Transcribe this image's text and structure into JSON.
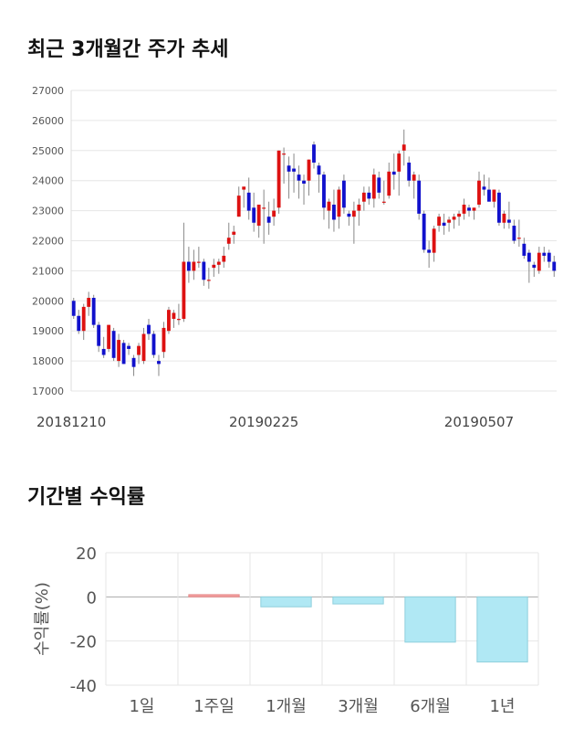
{
  "sections": {
    "price_title": "최근 3개월간 주가 추세",
    "returns_title": "기간별 수익률"
  },
  "chart_data": [
    {
      "type": "candlestick",
      "title": "최근 3개월간 주가 추세",
      "ylim": [
        17000,
        27000
      ],
      "y_ticks": [
        17000,
        18000,
        19000,
        20000,
        21000,
        22000,
        23000,
        24000,
        25000,
        26000,
        27000
      ],
      "x_tick_labels": [
        {
          "index": 0,
          "label": "20181210"
        },
        {
          "index": 38,
          "label": "20190225"
        },
        {
          "index": 81,
          "label": "20190507"
        }
      ],
      "up_color": "#dd1111",
      "down_color": "#1111cc",
      "candles": [
        [
          20000,
          20100,
          19400,
          19500
        ],
        [
          19500,
          19700,
          18900,
          19000
        ],
        [
          19000,
          19900,
          18700,
          19800
        ],
        [
          19800,
          20300,
          19500,
          20100
        ],
        [
          20100,
          20200,
          19100,
          19200
        ],
        [
          19200,
          19300,
          18300,
          18500
        ],
        [
          18400,
          18800,
          18100,
          18200
        ],
        [
          18400,
          19200,
          18300,
          19200
        ],
        [
          19000,
          19100,
          18000,
          18100
        ],
        [
          18000,
          18900,
          17800,
          18700
        ],
        [
          18600,
          18700,
          17900,
          17900
        ],
        [
          18500,
          18600,
          18200,
          18400
        ],
        [
          18100,
          18200,
          17500,
          17800
        ],
        [
          18200,
          18600,
          17900,
          18500
        ],
        [
          18000,
          19100,
          17900,
          18900
        ],
        [
          19200,
          19400,
          18700,
          18900
        ],
        [
          18900,
          19000,
          18100,
          18200
        ],
        [
          18000,
          18200,
          17500,
          17900
        ],
        [
          18300,
          19300,
          18100,
          19100
        ],
        [
          19000,
          19800,
          18900,
          19700
        ],
        [
          19400,
          19700,
          19100,
          19600
        ],
        [
          19400,
          19900,
          19200,
          19400
        ],
        [
          19400,
          22600,
          19300,
          21300
        ],
        [
          21300,
          21800,
          20600,
          21000
        ],
        [
          21000,
          21700,
          20700,
          21300
        ],
        [
          21300,
          21800,
          21100,
          21300
        ],
        [
          21300,
          21400,
          20500,
          20700
        ],
        [
          20700,
          21100,
          20400,
          20700
        ],
        [
          21100,
          21400,
          20800,
          21200
        ],
        [
          21200,
          21400,
          20900,
          21300
        ],
        [
          21300,
          21800,
          21100,
          21500
        ],
        [
          21900,
          22600,
          21700,
          22100
        ],
        [
          22200,
          22500,
          21900,
          22300
        ],
        [
          22800,
          23800,
          22800,
          23500
        ],
        [
          23700,
          23800,
          23100,
          23800
        ],
        [
          23600,
          24100,
          22700,
          23000
        ],
        [
          23100,
          23600,
          22300,
          22600
        ],
        [
          22500,
          23200,
          22100,
          23200
        ],
        [
          23100,
          23700,
          21900,
          23100
        ],
        [
          22800,
          23300,
          22200,
          22600
        ],
        [
          22800,
          23400,
          22500,
          23000
        ],
        [
          23100,
          25000,
          22900,
          25000
        ],
        [
          24900,
          25100,
          23900,
          24900
        ],
        [
          24500,
          24800,
          23400,
          24300
        ],
        [
          24400,
          24900,
          23600,
          24300
        ],
        [
          24200,
          24500,
          23400,
          24000
        ],
        [
          24000,
          24200,
          23200,
          23900
        ],
        [
          24000,
          24700,
          23500,
          24700
        ],
        [
          25200,
          25300,
          24400,
          24600
        ],
        [
          24500,
          24600,
          23600,
          24200
        ],
        [
          24200,
          24300,
          22700,
          23100
        ],
        [
          23000,
          23400,
          22400,
          23300
        ],
        [
          23200,
          23700,
          22300,
          22700
        ],
        [
          22800,
          23800,
          22400,
          23700
        ],
        [
          24000,
          24200,
          22900,
          23100
        ],
        [
          22900,
          23000,
          22500,
          22800
        ],
        [
          22800,
          23300,
          21900,
          23000
        ],
        [
          23000,
          23400,
          22500,
          23200
        ],
        [
          23300,
          23800,
          23000,
          23600
        ],
        [
          23600,
          23800,
          23200,
          23400
        ],
        [
          23400,
          24400,
          23100,
          24200
        ],
        [
          24100,
          24300,
          23400,
          23600
        ],
        [
          23300,
          24000,
          23200,
          23300
        ],
        [
          23500,
          24600,
          23400,
          24300
        ],
        [
          24300,
          24900,
          23700,
          24200
        ],
        [
          24300,
          25000,
          23500,
          24900
        ],
        [
          25000,
          25700,
          24500,
          25200
        ],
        [
          24600,
          24800,
          23800,
          24000
        ],
        [
          24000,
          24300,
          23400,
          24200
        ],
        [
          24000,
          24200,
          22700,
          22900
        ],
        [
          22900,
          23000,
          21600,
          21700
        ],
        [
          21700,
          22000,
          21100,
          21600
        ],
        [
          21600,
          22500,
          21300,
          22400
        ],
        [
          22500,
          22900,
          22300,
          22800
        ],
        [
          22600,
          22900,
          22200,
          22500
        ],
        [
          22600,
          22800,
          22300,
          22700
        ],
        [
          22700,
          22900,
          22400,
          22800
        ],
        [
          22800,
          23000,
          22500,
          22900
        ],
        [
          22900,
          23400,
          22700,
          23200
        ],
        [
          23100,
          23200,
          22800,
          23000
        ],
        [
          23000,
          23100,
          22700,
          23100
        ],
        [
          23200,
          24300,
          23100,
          24000
        ],
        [
          23800,
          24200,
          23500,
          23700
        ],
        [
          23700,
          24100,
          23400,
          23300
        ],
        [
          23300,
          23700,
          23100,
          23700
        ],
        [
          23600,
          23700,
          22500,
          22600
        ],
        [
          22600,
          23000,
          22400,
          22900
        ],
        [
          22700,
          23300,
          22400,
          22600
        ],
        [
          22500,
          22700,
          21900,
          22000
        ],
        [
          22100,
          22700,
          21800,
          22100
        ],
        [
          21900,
          22100,
          21400,
          21500
        ],
        [
          21600,
          21700,
          20600,
          21300
        ],
        [
          21200,
          21300,
          20800,
          21100
        ],
        [
          21000,
          21800,
          20900,
          21600
        ],
        [
          21600,
          21800,
          21300,
          21500
        ],
        [
          21600,
          21700,
          21100,
          21300
        ],
        [
          21300,
          21500,
          20800,
          21000
        ]
      ]
    },
    {
      "type": "bar",
      "title": "기간별 수익률",
      "ylabel": "수익률(%)",
      "ylim": [
        -40,
        20
      ],
      "y_ticks": [
        20,
        0,
        -20,
        -40
      ],
      "categories": [
        "1일",
        "1주일",
        "1개월",
        "3개월",
        "6개월",
        "1년"
      ],
      "values": [
        0,
        1,
        -4.5,
        -3.2,
        -20.5,
        -29.5
      ],
      "positive_color": "#f4a0a0",
      "negative_color": "#b0e8f4"
    }
  ]
}
